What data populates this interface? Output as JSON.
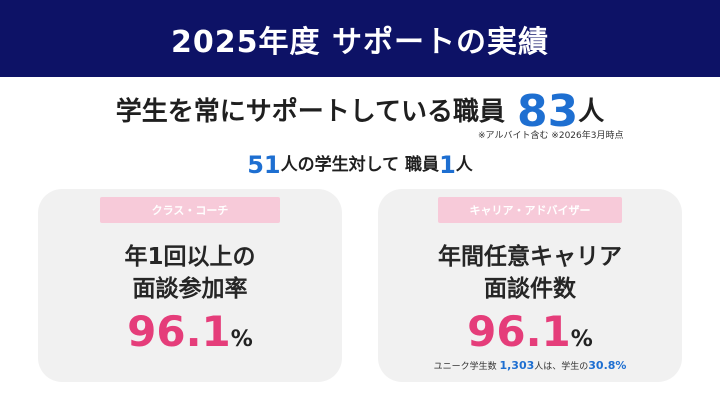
{
  "header": {
    "title": "2025年度 サポートの実績"
  },
  "staff": {
    "text": "学生を常にサポートしている職員",
    "count": "83",
    "unit": "人",
    "note": "※アルバイト含む ※2026年3月時点"
  },
  "ratio": {
    "students": "51",
    "text_a": "人の学生対して 職員",
    "staff": "1",
    "text_b": "人"
  },
  "cards": [
    {
      "tag": "クラス・コーチ",
      "title_line1": "年1回以上の",
      "title_line2": "面談参加率",
      "value": "96.1",
      "unit": "%"
    },
    {
      "tag": "キャリア・アドバイザー",
      "title_line1": "年間任意キャリア",
      "title_line2": "面談件数",
      "value": "96.1",
      "unit": "%",
      "note_prefix": "ユニーク学生数",
      "note_count": "1,303",
      "note_mid": "人は、学生の",
      "note_pct": "30.8%"
    }
  ],
  "colors": {
    "header_bg": "#0d1266",
    "accent_blue": "#1e6fd1",
    "accent_pink": "#e53d7a",
    "tag_pink": "#f7cad9",
    "card_bg": "#f1f1f1"
  }
}
